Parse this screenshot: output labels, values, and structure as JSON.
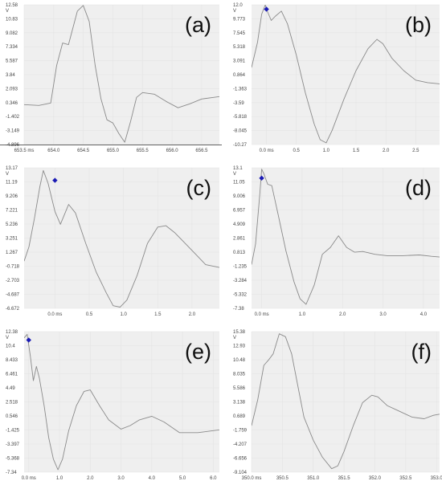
{
  "chart_data": [
    {
      "panel": "(a)",
      "type": "line",
      "xlim": [
        653.5,
        656.8
      ],
      "ylim": [
        -4.896,
        12.58
      ],
      "x_ticks": [
        "653.5 ms",
        "654.0",
        "654.5",
        "655.0",
        "655.5",
        "656.0",
        "656.5"
      ],
      "x_tick_values": [
        653.5,
        654.0,
        654.5,
        655.0,
        655.5,
        656.0,
        656.5
      ],
      "y_ticks": [
        "12.58",
        "10.83",
        "9.082",
        "7.334",
        "5.587",
        "3.84",
        "2.093",
        "0.346",
        "-1.402",
        "-3.149",
        "-4.896"
      ],
      "y_unit": "V",
      "marker": null,
      "x_axis_line": true,
      "x": [
        653.5,
        653.75,
        653.95,
        654.05,
        654.15,
        654.25,
        654.4,
        654.5,
        654.6,
        654.7,
        654.8,
        654.9,
        655.0,
        655.1,
        655.2,
        655.3,
        655.4,
        655.5,
        655.7,
        655.9,
        656.1,
        656.3,
        656.5,
        656.7,
        656.8
      ],
      "y": [
        0.1,
        0.0,
        0.3,
        5.0,
        7.8,
        7.6,
        11.8,
        12.5,
        10.5,
        5.0,
        0.8,
        -1.8,
        -2.2,
        -3.5,
        -4.6,
        -2.0,
        1.0,
        1.6,
        1.4,
        0.5,
        -0.3,
        0.2,
        0.8,
        1.0,
        1.1
      ]
    },
    {
      "panel": "(b)",
      "type": "line",
      "xlim": [
        -0.25,
        2.9
      ],
      "ylim": [
        -10.27,
        12.0
      ],
      "x_ticks": [
        "0.0 ms",
        "0.5",
        "1.0",
        "1.5",
        "2.0",
        "2.5"
      ],
      "x_tick_values": [
        0.0,
        0.5,
        1.0,
        1.5,
        2.0,
        2.5
      ],
      "y_ticks": [
        "12.0",
        "9.773",
        "7.545",
        "5.318",
        "3.091",
        "0.864",
        "-1.363",
        "-3.59",
        "-5.818",
        "-8.045",
        "-10.27"
      ],
      "y_unit": "V",
      "marker": {
        "x": 0.0,
        "y": 11.3
      },
      "x_axis_line": false,
      "x": [
        -0.25,
        -0.15,
        -0.08,
        -0.02,
        0.0,
        0.08,
        0.15,
        0.25,
        0.35,
        0.5,
        0.65,
        0.8,
        0.9,
        1.0,
        1.1,
        1.3,
        1.5,
        1.7,
        1.85,
        1.95,
        2.1,
        2.3,
        2.5,
        2.7,
        2.9
      ],
      "y": [
        2.0,
        6.0,
        10.5,
        12.0,
        11.3,
        9.5,
        10.2,
        11.0,
        9.0,
        4.0,
        -2.0,
        -7.0,
        -9.5,
        -10.0,
        -8.0,
        -3.0,
        1.5,
        5.0,
        6.5,
        5.8,
        3.5,
        1.5,
        0.0,
        -0.4,
        -0.6
      ]
    },
    {
      "panel": "(c)",
      "type": "line",
      "xlim": [
        -0.45,
        2.4
      ],
      "ylim": [
        -6.672,
        13.17
      ],
      "x_ticks": [
        "0.0 ms",
        "0.5",
        "1.0",
        "1.5",
        "2.0"
      ],
      "x_tick_values": [
        0.0,
        0.5,
        1.0,
        1.5,
        2.0
      ],
      "y_ticks": [
        "13.17",
        "11.19",
        "9.206",
        "7.221",
        "5.236",
        "3.251",
        "1.267",
        "-0.718",
        "-2.703",
        "-4.687",
        "-6.672"
      ],
      "y_unit": "V",
      "marker": {
        "x": 0.0,
        "y": 11.4
      },
      "x_axis_line": false,
      "x": [
        -0.45,
        -0.38,
        -0.3,
        -0.22,
        -0.17,
        -0.1,
        0.0,
        0.08,
        0.2,
        0.3,
        0.45,
        0.6,
        0.75,
        0.85,
        0.95,
        1.05,
        1.2,
        1.35,
        1.5,
        1.62,
        1.75,
        1.9,
        2.05,
        2.2,
        2.4
      ],
      "y": [
        0.0,
        2.0,
        6.0,
        10.5,
        12.8,
        11.0,
        7.0,
        5.2,
        8.0,
        6.8,
        2.5,
        -1.5,
        -4.5,
        -6.3,
        -6.5,
        -5.5,
        -2.0,
        2.5,
        4.8,
        5.0,
        4.0,
        2.5,
        1.0,
        -0.5,
        -0.9
      ]
    },
    {
      "panel": "(d)",
      "type": "line",
      "xlim": [
        -0.25,
        4.4
      ],
      "ylim": [
        -7.38,
        13.1
      ],
      "x_ticks": [
        "0.0 ms",
        "1.0",
        "2.0",
        "3.0",
        "4.0"
      ],
      "x_tick_values": [
        0.0,
        1.0,
        2.0,
        3.0,
        4.0
      ],
      "y_ticks": [
        "13.1",
        "11.05",
        "9.006",
        "6.957",
        "4.909",
        "2.861",
        "0.813",
        "-1.235",
        "-3.284",
        "-5.332",
        "-7.38"
      ],
      "y_unit": "V",
      "marker": {
        "x": 0.0,
        "y": 11.6
      },
      "x_axis_line": false,
      "x": [
        -0.25,
        -0.15,
        -0.05,
        0.0,
        0.05,
        0.15,
        0.25,
        0.4,
        0.6,
        0.8,
        0.95,
        1.1,
        1.3,
        1.5,
        1.7,
        1.9,
        2.1,
        2.3,
        2.5,
        2.8,
        3.1,
        3.5,
        3.9,
        4.2,
        4.4
      ],
      "y": [
        -1.0,
        2.0,
        9.0,
        12.9,
        12.3,
        10.7,
        10.5,
        6.5,
        1.0,
        -3.5,
        -6.0,
        -6.8,
        -4.0,
        0.5,
        1.5,
        3.2,
        1.5,
        0.8,
        0.9,
        0.5,
        0.3,
        0.3,
        0.4,
        0.2,
        0.1
      ]
    },
    {
      "panel": "(e)",
      "type": "line",
      "xlim": [
        -0.15,
        6.2
      ],
      "ylim": [
        -7.34,
        12.38
      ],
      "x_ticks": [
        "0.0 ms",
        "1.0",
        "2.0",
        "3.0",
        "4.0",
        "5.0",
        "6.0"
      ],
      "x_tick_values": [
        0.0,
        1.0,
        2.0,
        3.0,
        4.0,
        5.0,
        6.0
      ],
      "y_ticks": [
        "12.38",
        "10.4",
        "8.433",
        "6.461",
        "4.49",
        "2.518",
        "0.546",
        "-1.425",
        "-3.397",
        "-5.368",
        "-7.34"
      ],
      "y_unit": "V",
      "marker": {
        "x": 0.0,
        "y": 11.2
      },
      "x_axis_line": false,
      "x": [
        -0.15,
        -0.05,
        0.05,
        0.15,
        0.25,
        0.35,
        0.5,
        0.65,
        0.8,
        0.95,
        1.1,
        1.3,
        1.55,
        1.8,
        2.0,
        2.3,
        2.6,
        3.0,
        3.3,
        3.6,
        4.0,
        4.4,
        4.9,
        5.5,
        6.2
      ],
      "y": [
        11.5,
        12.0,
        9.0,
        5.5,
        7.5,
        5.8,
        2.0,
        -2.5,
        -5.5,
        -7.0,
        -5.5,
        -1.5,
        2.0,
        4.0,
        4.2,
        2.0,
        0.0,
        -1.3,
        -0.8,
        0.0,
        0.5,
        -0.3,
        -1.8,
        -1.8,
        -1.4
      ]
    },
    {
      "panel": "(f)",
      "type": "line",
      "xlim": [
        350.0,
        353.05
      ],
      "ylim": [
        -9.104,
        15.38
      ],
      "x_ticks": [
        "350.0 ms",
        "350.5",
        "351.0",
        "351.5",
        "352.0",
        "352.5",
        "353.0"
      ],
      "x_tick_values": [
        350.0,
        350.5,
        351.0,
        351.5,
        352.0,
        352.5,
        353.0
      ],
      "y_ticks": [
        "15.38",
        "12.93",
        "10.48",
        "8.035",
        "5.586",
        "3.138",
        "0.689",
        "-1.759",
        "-4.207",
        "-6.656",
        "-9.104"
      ],
      "y_unit": "V",
      "marker": null,
      "x_axis_line": false,
      "x": [
        350.0,
        350.1,
        350.2,
        350.28,
        350.35,
        350.45,
        350.55,
        350.65,
        350.75,
        350.85,
        351.0,
        351.15,
        351.3,
        351.4,
        351.5,
        351.65,
        351.8,
        351.95,
        352.05,
        352.2,
        352.4,
        352.6,
        352.8,
        352.95,
        353.05
      ],
      "y": [
        -1.0,
        3.5,
        9.5,
        10.5,
        11.5,
        15.0,
        14.5,
        11.5,
        6.0,
        0.5,
        -3.5,
        -6.5,
        -8.5,
        -8.0,
        -5.5,
        -1.0,
        3.0,
        4.3,
        4.0,
        2.5,
        1.5,
        0.5,
        0.2,
        0.8,
        1.0
      ]
    }
  ]
}
